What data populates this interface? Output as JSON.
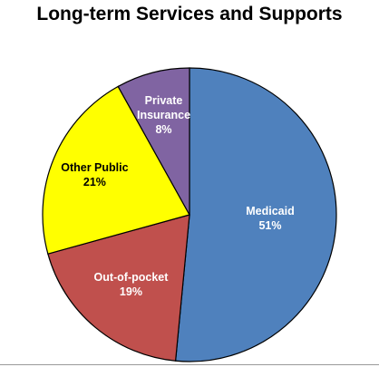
{
  "chart_data": {
    "type": "pie",
    "title": "Long-term Services and Supports",
    "slices": [
      {
        "label": "Medicaid",
        "value": 51,
        "display": "51%",
        "color": "#4f81bd",
        "text_color": "#ffffff"
      },
      {
        "label": "Out-of-pocket",
        "value": 19,
        "display": "19%",
        "color": "#c0504d",
        "text_color": "#ffffff"
      },
      {
        "label": "Other Public",
        "value": 21,
        "display": "21%",
        "color": "#ffff00",
        "text_color": "#000000"
      },
      {
        "label": "Private Insurance",
        "label_lines": [
          "Private",
          "Insurance"
        ],
        "value": 8,
        "display": "8%",
        "color": "#8064a2",
        "text_color": "#ffffff"
      }
    ],
    "start": "12 o'clock",
    "direction": "clockwise",
    "legend": "none"
  }
}
